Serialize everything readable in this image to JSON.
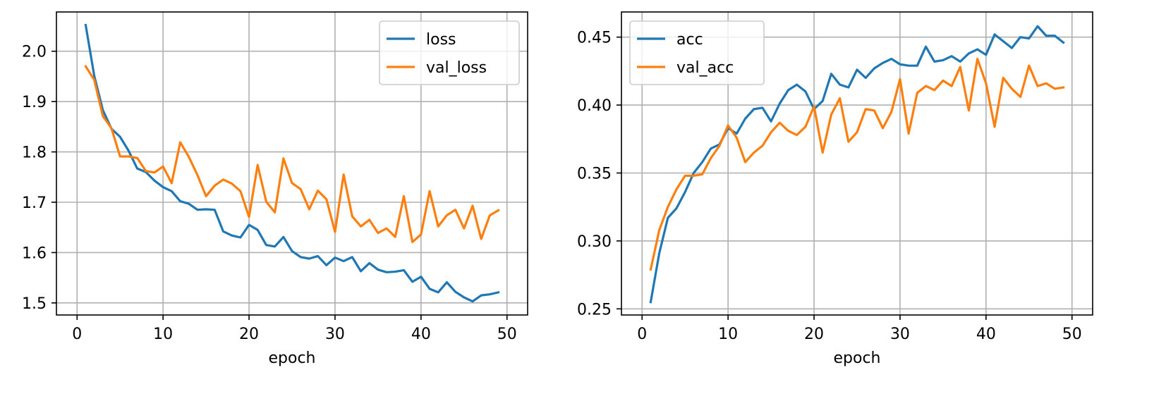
{
  "chart_data": [
    {
      "type": "line",
      "title": "",
      "xlabel": "epoch",
      "ylabel": "",
      "xlim": [
        -2.4,
        52.4
      ],
      "ylim": [
        1.476,
        2.078
      ],
      "xticks": [
        0,
        10,
        20,
        30,
        40,
        50
      ],
      "xtick_labels": [
        "0",
        "10",
        "20",
        "30",
        "40",
        "50"
      ],
      "yticks": [
        1.5,
        1.6,
        1.7,
        1.8,
        1.9,
        2.0
      ],
      "ytick_labels": [
        "1.5",
        "1.6",
        "1.7",
        "1.8",
        "1.9",
        "2.0"
      ],
      "grid": true,
      "legend_position": "top-right",
      "x": [
        1,
        2,
        3,
        4,
        5,
        6,
        7,
        8,
        9,
        10,
        11,
        12,
        13,
        14,
        15,
        16,
        17,
        18,
        19,
        20,
        21,
        22,
        23,
        24,
        25,
        26,
        27,
        28,
        29,
        30,
        31,
        32,
        33,
        34,
        35,
        36,
        37,
        38,
        39,
        40,
        41,
        42,
        43,
        44,
        45,
        46,
        47,
        48,
        49
      ],
      "series": [
        {
          "name": "loss",
          "color": "#1f77b4",
          "values": [
            2.052,
            1.951,
            1.883,
            1.846,
            1.83,
            1.802,
            1.767,
            1.76,
            1.743,
            1.73,
            1.722,
            1.702,
            1.697,
            1.685,
            1.686,
            1.685,
            1.642,
            1.634,
            1.63,
            1.655,
            1.645,
            1.615,
            1.612,
            1.631,
            1.603,
            1.591,
            1.588,
            1.593,
            1.575,
            1.59,
            1.583,
            1.591,
            1.563,
            1.579,
            1.566,
            1.561,
            1.562,
            1.565,
            1.542,
            1.552,
            1.528,
            1.521,
            1.541,
            1.522,
            1.511,
            1.503,
            1.515,
            1.517,
            1.521
          ]
        },
        {
          "name": "val_loss",
          "color": "#ff7f0e",
          "values": [
            1.97,
            1.943,
            1.871,
            1.847,
            1.791,
            1.791,
            1.788,
            1.762,
            1.759,
            1.771,
            1.738,
            1.819,
            1.79,
            1.754,
            1.712,
            1.733,
            1.745,
            1.737,
            1.722,
            1.671,
            1.774,
            1.701,
            1.68,
            1.787,
            1.738,
            1.726,
            1.686,
            1.723,
            1.706,
            1.641,
            1.755,
            1.672,
            1.652,
            1.665,
            1.639,
            1.648,
            1.631,
            1.712,
            1.621,
            1.636,
            1.722,
            1.652,
            1.674,
            1.685,
            1.648,
            1.693,
            1.627,
            1.674,
            1.684
          ]
        }
      ]
    },
    {
      "type": "line",
      "title": "",
      "xlabel": "epoch",
      "ylabel": "",
      "xlim": [
        -2.4,
        52.4
      ],
      "ylim": [
        0.2455,
        0.4685
      ],
      "xticks": [
        0,
        10,
        20,
        30,
        40,
        50
      ],
      "xtick_labels": [
        "0",
        "10",
        "20",
        "30",
        "40",
        "50"
      ],
      "yticks": [
        0.25,
        0.3,
        0.35,
        0.4,
        0.45
      ],
      "ytick_labels": [
        "0.25",
        "0.30",
        "0.35",
        "0.40",
        "0.45"
      ],
      "grid": true,
      "legend_position": "top-left",
      "x": [
        1,
        2,
        3,
        4,
        5,
        6,
        7,
        8,
        9,
        10,
        11,
        12,
        13,
        14,
        15,
        16,
        17,
        18,
        19,
        20,
        21,
        22,
        23,
        24,
        25,
        26,
        27,
        28,
        29,
        30,
        31,
        32,
        33,
        34,
        35,
        36,
        37,
        38,
        39,
        40,
        41,
        42,
        43,
        44,
        45,
        46,
        47,
        48,
        49
      ],
      "series": [
        {
          "name": "acc",
          "color": "#1f77b4",
          "values": [
            0.255,
            0.291,
            0.317,
            0.324,
            0.336,
            0.35,
            0.358,
            0.368,
            0.371,
            0.383,
            0.379,
            0.39,
            0.397,
            0.398,
            0.388,
            0.401,
            0.411,
            0.415,
            0.41,
            0.397,
            0.403,
            0.423,
            0.415,
            0.413,
            0.426,
            0.42,
            0.427,
            0.431,
            0.434,
            0.43,
            0.429,
            0.429,
            0.443,
            0.432,
            0.433,
            0.436,
            0.432,
            0.438,
            0.441,
            0.437,
            0.452,
            0.447,
            0.442,
            0.45,
            0.449,
            0.458,
            0.451,
            0.451,
            0.446
          ]
        },
        {
          "name": "val_acc",
          "color": "#ff7f0e",
          "values": [
            0.279,
            0.308,
            0.325,
            0.338,
            0.348,
            0.348,
            0.349,
            0.361,
            0.37,
            0.385,
            0.376,
            0.358,
            0.365,
            0.37,
            0.38,
            0.387,
            0.381,
            0.378,
            0.384,
            0.399,
            0.365,
            0.393,
            0.405,
            0.373,
            0.38,
            0.397,
            0.396,
            0.383,
            0.395,
            0.419,
            0.379,
            0.409,
            0.414,
            0.411,
            0.418,
            0.414,
            0.428,
            0.396,
            0.434,
            0.416,
            0.384,
            0.42,
            0.412,
            0.406,
            0.429,
            0.414,
            0.416,
            0.412,
            0.413
          ]
        }
      ]
    }
  ]
}
